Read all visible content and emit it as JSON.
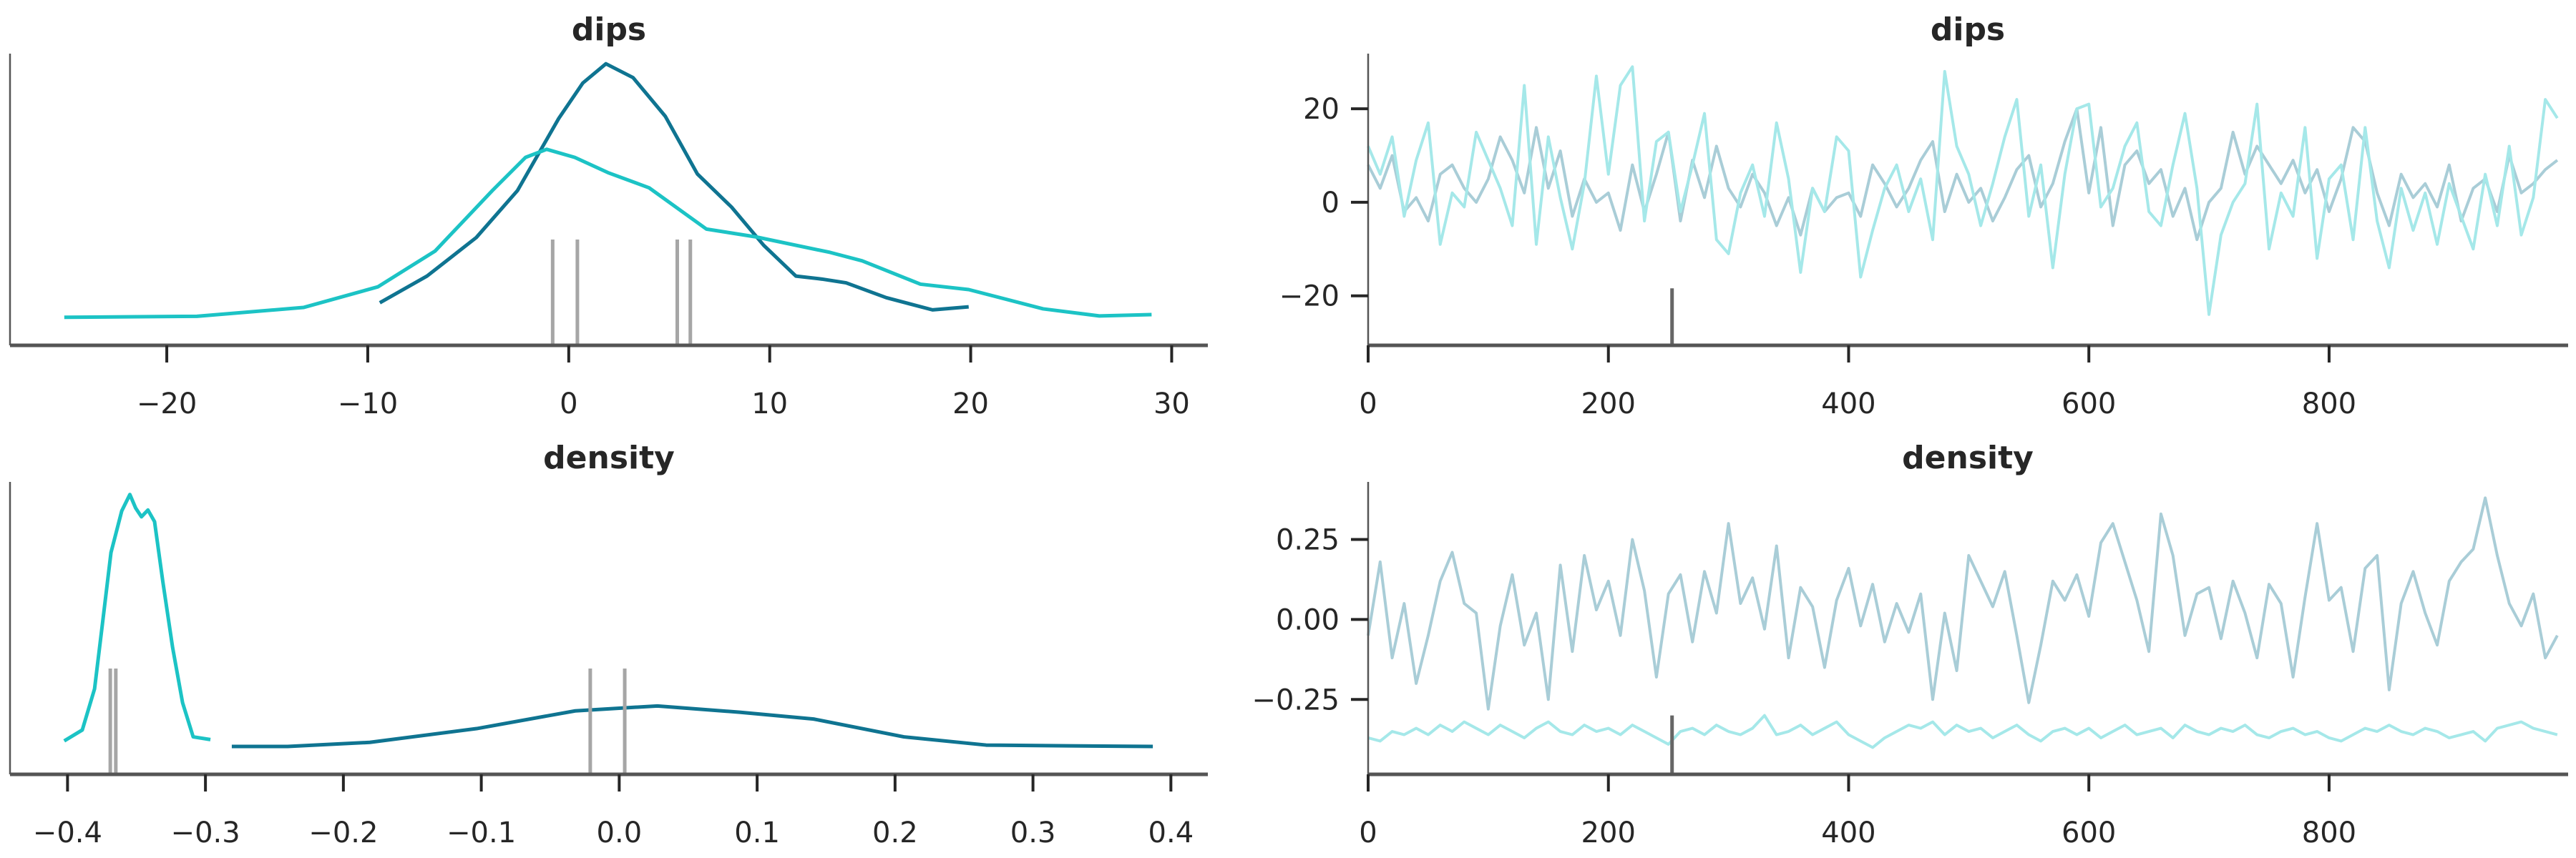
{
  "chart_data": [
    {
      "panel": "dips-posterior",
      "type": "line",
      "title": "dips",
      "xlim": [
        -27.8,
        31.8
      ],
      "ylim": [
        -0.0083,
        0.078
      ],
      "xticks": [
        -20,
        -10,
        0,
        10,
        20,
        30
      ],
      "xtick_labels": [
        "−20",
        "−10",
        "0",
        "10",
        "20",
        "30"
      ],
      "yticks": [],
      "grid": false,
      "series": [
        {
          "color": "#0f7491",
          "x": [
            -9.4,
            -7.05,
            -4.6,
            -2.55,
            -0.5,
            0.7,
            1.85,
            3.2,
            4.8,
            6.4,
            8.1,
            9.7,
            11.3,
            12.6,
            13.8,
            15.8,
            18.1,
            19.9
          ],
          "y": [
            0.0043,
            0.0122,
            0.0236,
            0.0375,
            0.0588,
            0.0693,
            0.075,
            0.0709,
            0.0595,
            0.0424,
            0.0326,
            0.0213,
            0.0122,
            0.0113,
            0.0102,
            0.0058,
            0.0022,
            0.0031
          ]
        },
        {
          "color": "#1cc3c5",
          "x": [
            -25.1,
            -18.5,
            -13.2,
            -9.5,
            -6.65,
            -3.8,
            -2.15,
            -1.1,
            0.3,
            1.95,
            4.0,
            6.85,
            9.3,
            13.0,
            14.6,
            17.5,
            19.9,
            23.6,
            26.4,
            29.0
          ],
          "y": [
            0,
            0.0003,
            0.0029,
            0.009,
            0.0196,
            0.0375,
            0.0473,
            0.0497,
            0.0473,
            0.0428,
            0.0383,
            0.0261,
            0.0238,
            0.0192,
            0.0167,
            0.0098,
            0.0082,
            0.0025,
            0.0004,
            0.0008
          ]
        }
      ],
      "vlines": {
        "color": "#a6a6a6",
        "x": [
          -0.8,
          0.43,
          5.4,
          6.05
        ]
      }
    },
    {
      "panel": "dips-trace",
      "type": "line",
      "title": "dips",
      "xlim": [
        0,
        999
      ],
      "ylim": [
        -30.6,
        31.8
      ],
      "xticks": [
        0,
        200,
        400,
        600,
        800
      ],
      "xtick_labels": [
        "0",
        "200",
        "400",
        "600",
        "800"
      ],
      "yticks": [
        -20,
        0,
        20
      ],
      "ytick_labels": [
        "−20",
        "0",
        "20"
      ],
      "grid": false,
      "draws": [
        0,
        10,
        20,
        30,
        40,
        50,
        60,
        70,
        80,
        90,
        100,
        110,
        120,
        130,
        140,
        150,
        160,
        170,
        180,
        190,
        200,
        210,
        220,
        230,
        240,
        250,
        260,
        270,
        280,
        290,
        300,
        310,
        320,
        330,
        340,
        350,
        360,
        370,
        380,
        390,
        400,
        410,
        420,
        430,
        440,
        450,
        460,
        470,
        480,
        490,
        500,
        510,
        520,
        530,
        540,
        550,
        560,
        570,
        580,
        590,
        600,
        610,
        620,
        630,
        640,
        650,
        660,
        670,
        680,
        690,
        700,
        710,
        720,
        730,
        740,
        750,
        760,
        770,
        780,
        790,
        800,
        810,
        820,
        830,
        840,
        850,
        860,
        870,
        880,
        890,
        900,
        910,
        920,
        930,
        940,
        950,
        960,
        970,
        980,
        990
      ],
      "series": [
        {
          "color": "#a9cdd7",
          "values": [
            8,
            3,
            10,
            -2,
            1,
            -4,
            6,
            8,
            3,
            0,
            5,
            14,
            9,
            2,
            16,
            3,
            11,
            -3,
            5,
            0,
            2,
            -6,
            8,
            -2,
            6,
            15,
            -4,
            9,
            1,
            12,
            3,
            -1,
            6,
            2,
            -5,
            1,
            -7,
            3,
            -2,
            1,
            2,
            -3,
            8,
            4,
            -1,
            3,
            9,
            13,
            -2,
            6,
            0,
            3,
            -4,
            1,
            7,
            10,
            -1,
            4,
            13,
            20,
            2,
            16,
            -5,
            8,
            11,
            4,
            7,
            -3,
            3,
            -8,
            0,
            3,
            15,
            6,
            12,
            8,
            4,
            9,
            2,
            7,
            -2,
            5,
            16,
            13,
            2,
            -5,
            6,
            1,
            4,
            -1,
            8,
            -4,
            3,
            5,
            -2,
            10,
            2,
            4,
            7,
            9
          ]
        },
        {
          "color": "#a5e8e9",
          "values": [
            12,
            6,
            14,
            -3,
            9,
            17,
            -9,
            2,
            -1,
            15,
            9,
            3,
            -5,
            25,
            -9,
            14,
            1,
            -10,
            4,
            27,
            6,
            25,
            29,
            -4,
            13,
            15,
            -2,
            8,
            19,
            -8,
            -11,
            2,
            8,
            -3,
            17,
            5,
            -15,
            3,
            -2,
            14,
            11,
            -16,
            -6,
            3,
            8,
            -2,
            5,
            -8,
            28,
            12,
            6,
            -5,
            4,
            14,
            22,
            -3,
            8,
            -14,
            6,
            20,
            21,
            -1,
            3,
            12,
            17,
            -2,
            -5,
            8,
            19,
            3,
            -24,
            -7,
            0,
            4,
            21,
            -10,
            2,
            -3,
            16,
            -12,
            5,
            8,
            -8,
            16,
            -4,
            -14,
            3,
            -6,
            2,
            -9,
            4,
            -3,
            -10,
            6,
            -5,
            12,
            -7,
            1,
            22,
            18
          ]
        }
      ],
      "markers": {
        "color": "#666666",
        "x": [
          253
        ],
        "y_top": -18.4
      }
    },
    {
      "panel": "density-posterior",
      "type": "line",
      "title": "density",
      "xlim": [
        -0.4417,
        0.4268
      ],
      "ylim": [
        -2.88,
        27.3
      ],
      "xticks": [
        -0.4,
        -0.3,
        -0.2,
        -0.1,
        0.0,
        0.1,
        0.2,
        0.3,
        0.4
      ],
      "xtick_labels": [
        "−0.4",
        "−0.3",
        "−0.2",
        "−0.1",
        "0.0",
        "0.1",
        "0.2",
        "0.3",
        "0.4"
      ],
      "yticks": [],
      "grid": false,
      "series": [
        {
          "color": "#1cc3c5",
          "x": [
            -0.4024,
            -0.3893,
            -0.3804,
            -0.3744,
            -0.3685,
            -0.3607,
            -0.3548,
            -0.3506,
            -0.3464,
            -0.3417,
            -0.3369,
            -0.3309,
            -0.3238,
            -0.3166,
            -0.3089,
            -0.2964
          ],
          "y": [
            0.57,
            1.7,
            5.94,
            13.0,
            20.0,
            24.3,
            26.0,
            24.6,
            23.7,
            24.4,
            23.2,
            17.0,
            10.2,
            4.52,
            0.99,
            0.71
          ]
        },
        {
          "color": "#0f7491",
          "x": [
            -0.2809,
            -0.2404,
            -0.1808,
            -0.1034,
            -0.0319,
            0.0277,
            0.0873,
            0.1409,
            0.2064,
            0.266,
            0.3256,
            0.3869
          ],
          "y": [
            0,
            0,
            0.42,
            1.84,
            3.67,
            4.18,
            3.53,
            2.83,
            0.99,
            0.14,
            0.06,
            0
          ]
        }
      ],
      "vlines": {
        "color": "#a6a6a6",
        "x": [
          -0.369,
          -0.365,
          -0.021,
          0.004
        ]
      }
    },
    {
      "panel": "density-trace",
      "type": "line",
      "title": "density",
      "xlim": [
        0,
        999
      ],
      "ylim": [
        -0.484,
        0.43
      ],
      "xticks": [
        0,
        200,
        400,
        600,
        800
      ],
      "xtick_labels": [
        "0",
        "200",
        "400",
        "600",
        "800"
      ],
      "yticks": [
        -0.25,
        0.0,
        0.25
      ],
      "ytick_labels": [
        "−0.25",
        "0.00",
        "0.25"
      ],
      "grid": false,
      "draws": [
        0,
        10,
        20,
        30,
        40,
        50,
        60,
        70,
        80,
        90,
        100,
        110,
        120,
        130,
        140,
        150,
        160,
        170,
        180,
        190,
        200,
        210,
        220,
        230,
        240,
        250,
        260,
        270,
        280,
        290,
        300,
        310,
        320,
        330,
        340,
        350,
        360,
        370,
        380,
        390,
        400,
        410,
        420,
        430,
        440,
        450,
        460,
        470,
        480,
        490,
        500,
        510,
        520,
        530,
        540,
        550,
        560,
        570,
        580,
        590,
        600,
        610,
        620,
        630,
        640,
        650,
        660,
        670,
        680,
        690,
        700,
        710,
        720,
        730,
        740,
        750,
        760,
        770,
        780,
        790,
        800,
        810,
        820,
        830,
        840,
        850,
        860,
        870,
        880,
        890,
        900,
        910,
        920,
        930,
        940,
        950,
        960,
        970,
        980,
        990
      ],
      "series": [
        {
          "color": "#a9cdd7",
          "values": [
            -0.05,
            0.18,
            -0.12,
            0.05,
            -0.2,
            -0.05,
            0.12,
            0.21,
            0.05,
            0.02,
            -0.28,
            -0.02,
            0.14,
            -0.08,
            0.02,
            -0.25,
            0.17,
            -0.1,
            0.2,
            0.03,
            0.12,
            -0.05,
            0.25,
            0.09,
            -0.18,
            0.08,
            0.14,
            -0.07,
            0.15,
            0.02,
            0.3,
            0.05,
            0.13,
            -0.03,
            0.23,
            -0.12,
            0.1,
            0.04,
            -0.15,
            0.06,
            0.16,
            -0.02,
            0.11,
            -0.07,
            0.05,
            -0.04,
            0.08,
            -0.25,
            0.02,
            -0.16,
            0.2,
            0.12,
            0.04,
            0.15,
            -0.05,
            -0.26,
            -0.08,
            0.12,
            0.06,
            0.14,
            0.01,
            0.24,
            0.3,
            0.18,
            0.06,
            -0.1,
            0.33,
            0.2,
            -0.05,
            0.08,
            0.1,
            -0.06,
            0.12,
            0.02,
            -0.12,
            0.11,
            0.05,
            -0.18,
            0.07,
            0.3,
            0.06,
            0.1,
            -0.1,
            0.16,
            0.2,
            -0.22,
            0.05,
            0.15,
            0.02,
            -0.08,
            0.12,
            0.18,
            0.22,
            0.38,
            0.2,
            0.05,
            -0.02,
            0.08,
            -0.12,
            -0.05
          ]
        },
        {
          "color": "#a5e8e9",
          "values": [
            -0.37,
            -0.38,
            -0.35,
            -0.36,
            -0.34,
            -0.36,
            -0.33,
            -0.35,
            -0.32,
            -0.34,
            -0.36,
            -0.33,
            -0.35,
            -0.37,
            -0.34,
            -0.32,
            -0.35,
            -0.36,
            -0.33,
            -0.35,
            -0.34,
            -0.36,
            -0.33,
            -0.35,
            -0.37,
            -0.39,
            -0.35,
            -0.34,
            -0.36,
            -0.33,
            -0.35,
            -0.36,
            -0.34,
            -0.3,
            -0.36,
            -0.35,
            -0.33,
            -0.36,
            -0.34,
            -0.32,
            -0.36,
            -0.38,
            -0.4,
            -0.37,
            -0.35,
            -0.33,
            -0.34,
            -0.32,
            -0.36,
            -0.33,
            -0.35,
            -0.34,
            -0.37,
            -0.35,
            -0.33,
            -0.36,
            -0.38,
            -0.35,
            -0.34,
            -0.36,
            -0.34,
            -0.37,
            -0.35,
            -0.33,
            -0.36,
            -0.35,
            -0.34,
            -0.37,
            -0.33,
            -0.35,
            -0.36,
            -0.34,
            -0.35,
            -0.33,
            -0.36,
            -0.37,
            -0.35,
            -0.34,
            -0.36,
            -0.35,
            -0.37,
            -0.38,
            -0.36,
            -0.34,
            -0.35,
            -0.33,
            -0.35,
            -0.36,
            -0.34,
            -0.35,
            -0.37,
            -0.36,
            -0.35,
            -0.38,
            -0.34,
            -0.33,
            -0.32,
            -0.34,
            -0.35,
            -0.36
          ]
        }
      ],
      "markers": {
        "color": "#666666",
        "x": [
          253
        ],
        "y_top": -0.3
      }
    }
  ]
}
